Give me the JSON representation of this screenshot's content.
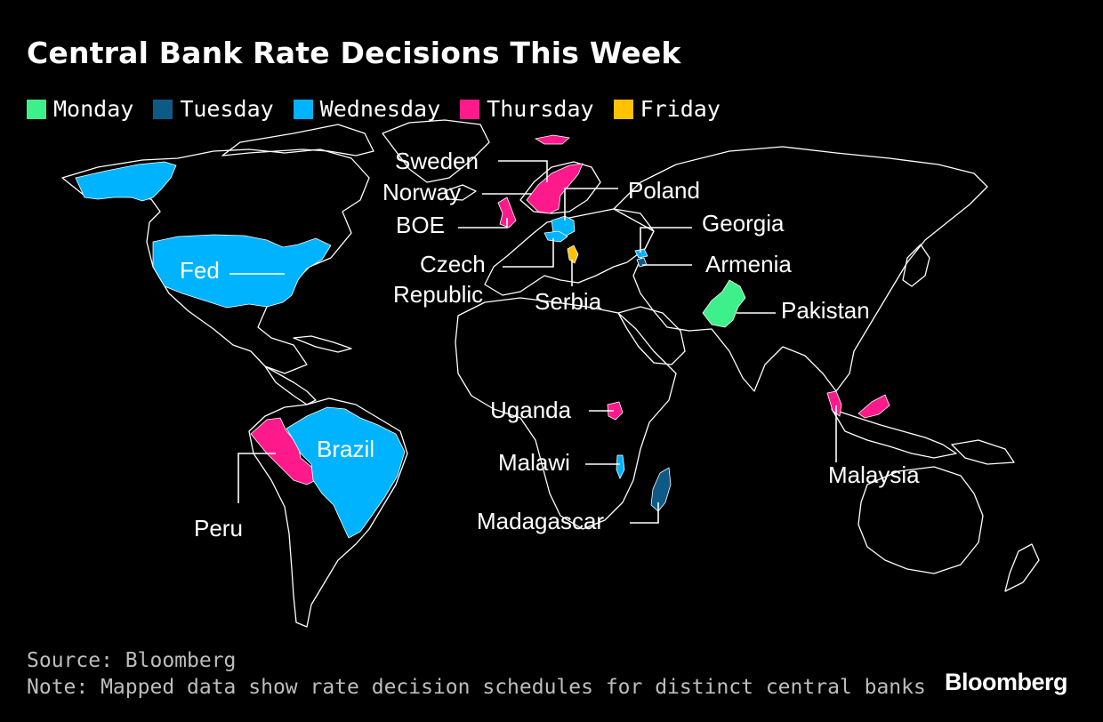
{
  "title": "Central Bank Rate Decisions This Week",
  "legend": [
    {
      "label": "Monday",
      "color": "#3ef089"
    },
    {
      "label": "Tuesday",
      "color": "#0e5a86"
    },
    {
      "label": "Wednesday",
      "color": "#00b3ff"
    },
    {
      "label": "Thursday",
      "color": "#ff1a8c"
    },
    {
      "label": "Friday",
      "color": "#ffc100"
    }
  ],
  "callouts": {
    "sweden": "Sweden",
    "norway": "Norway",
    "poland": "Poland",
    "boe": "BOE",
    "georgia": "Georgia",
    "czech_1": "Czech",
    "czech_2": "Republic",
    "armenia": "Armenia",
    "serbia": "Serbia",
    "fed": "Fed",
    "pakistan": "Pakistan",
    "uganda": "Uganda",
    "brazil": "Brazil",
    "malawi": "Malawi",
    "malaysia": "Malaysia",
    "peru": "Peru",
    "madagascar": "Madagascar"
  },
  "source": "Source: Bloomberg",
  "note": "Note: Mapped data show rate decision schedules for distinct central banks",
  "brand": "Bloomberg"
}
